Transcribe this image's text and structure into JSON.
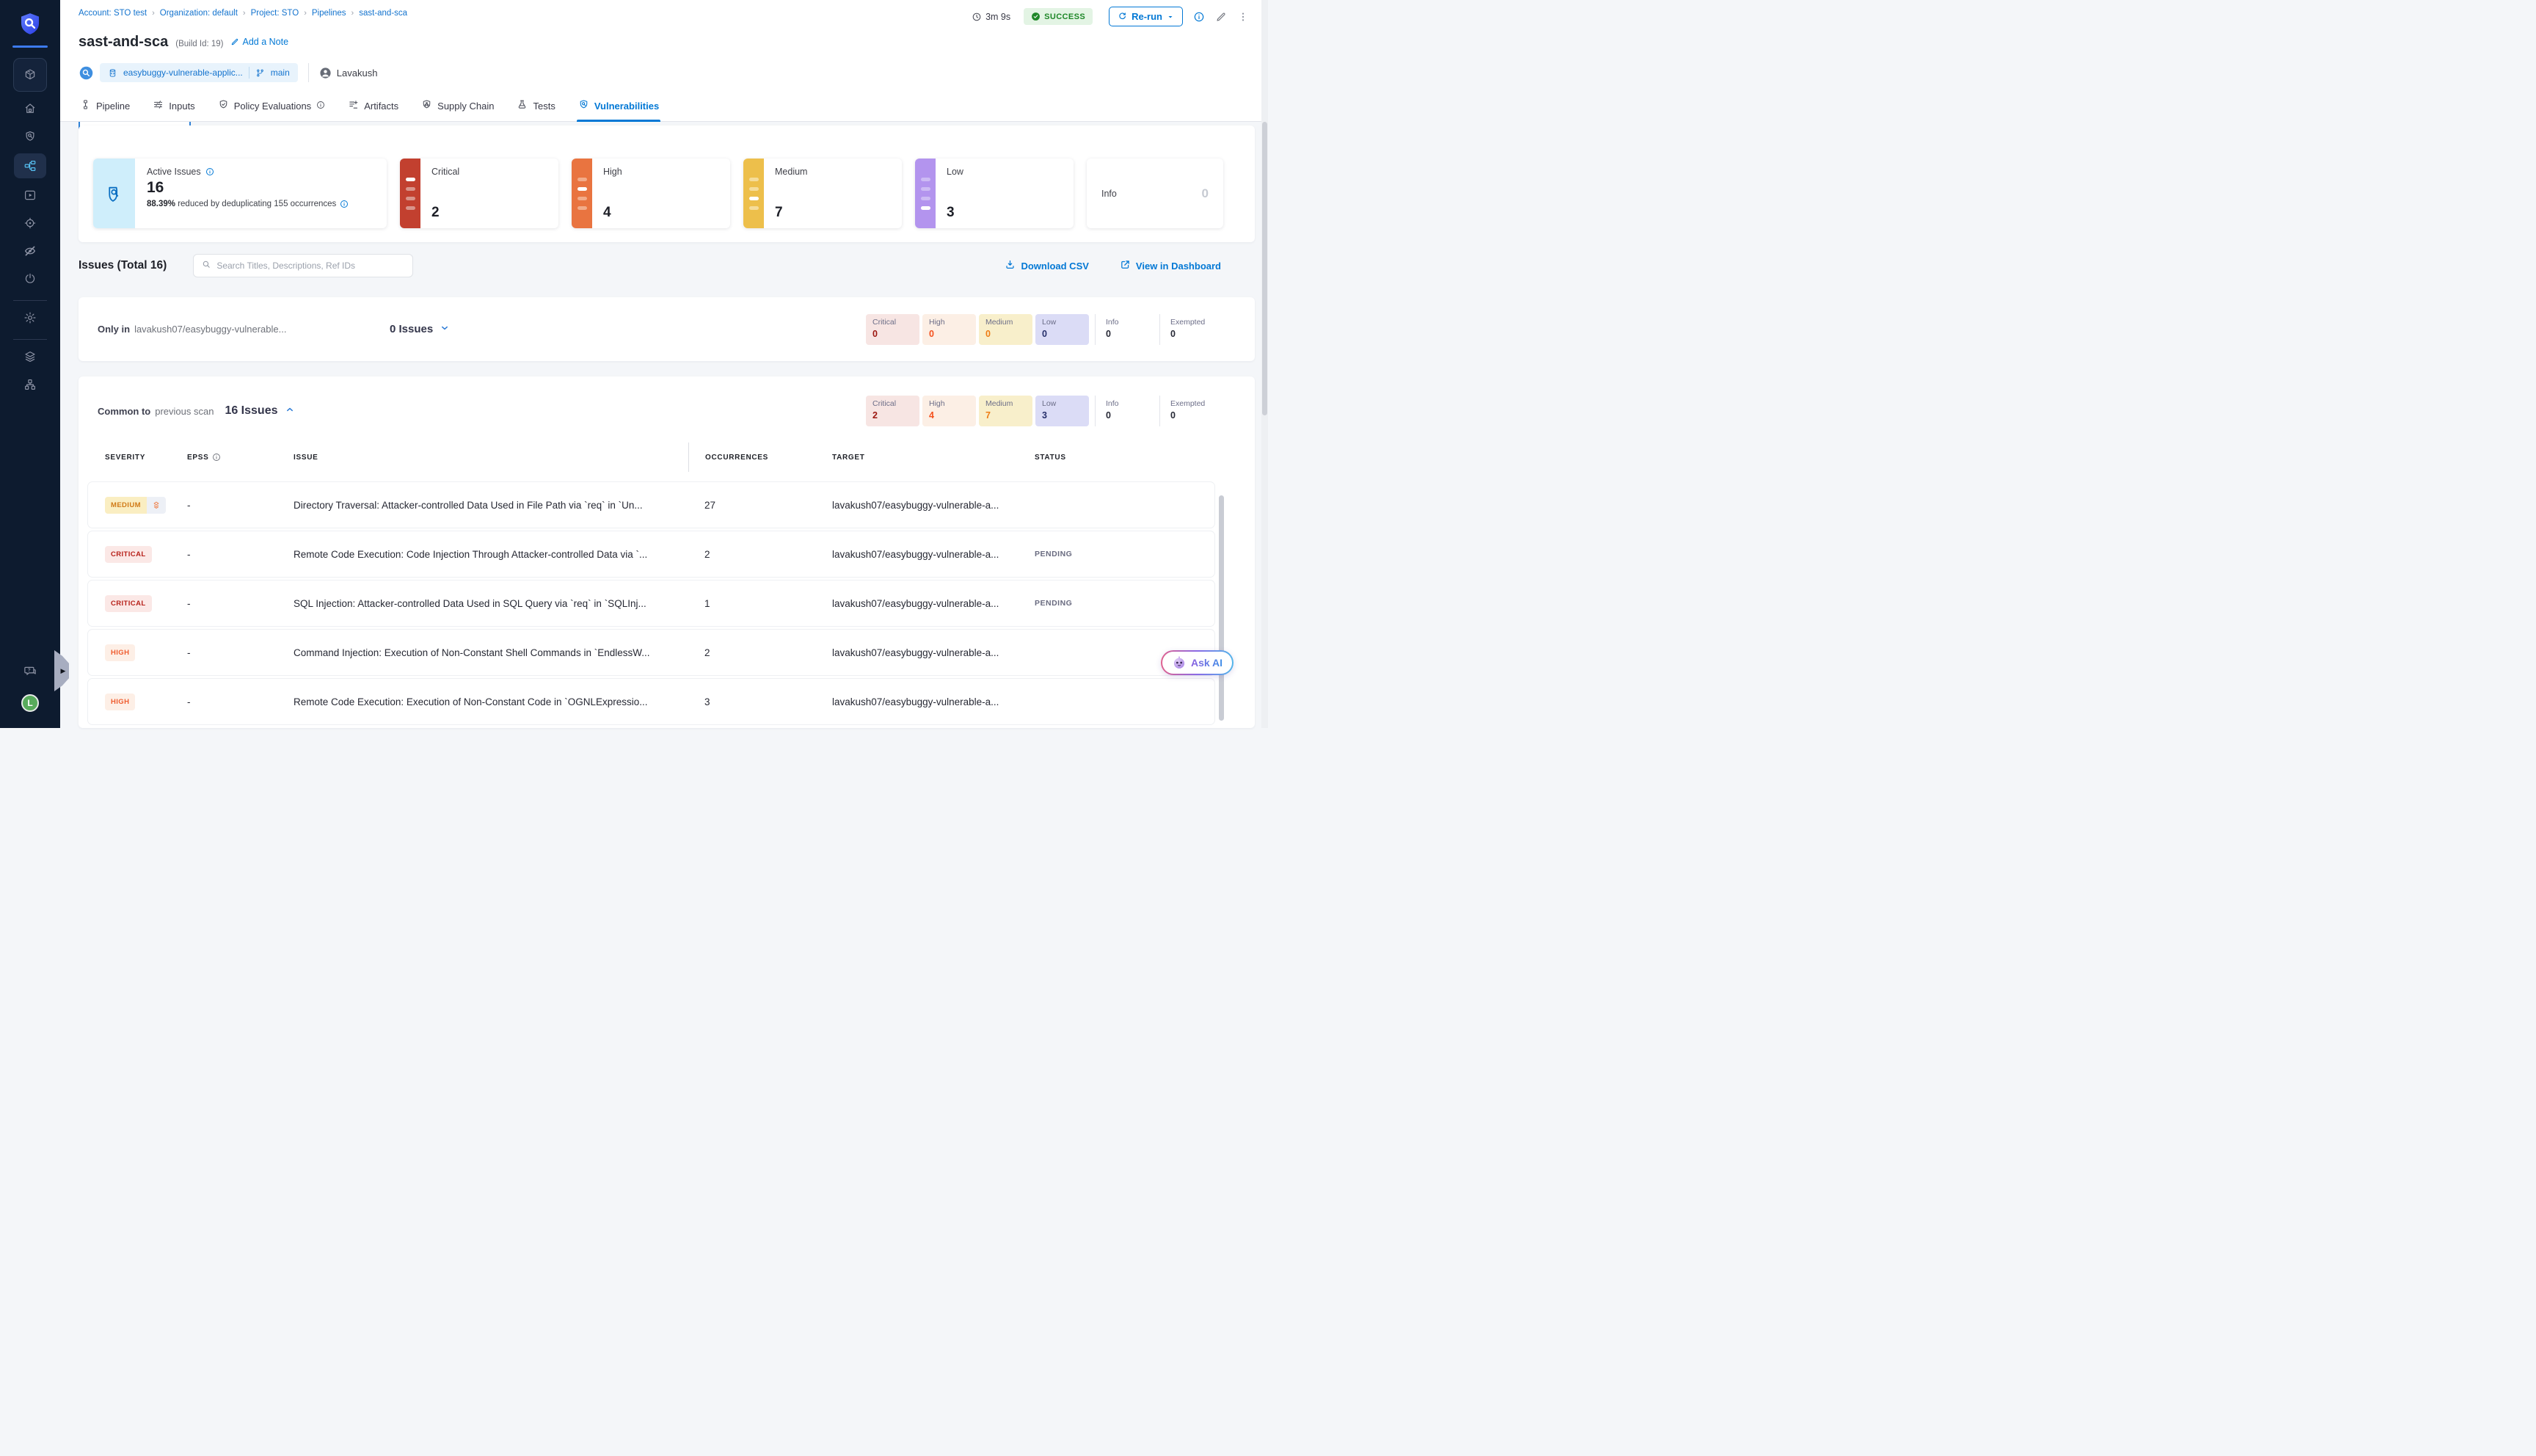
{
  "palette": {
    "accent": "#0278d5",
    "success": "#1e8728",
    "success_bg": "#e3f4e4",
    "critical": "#c2402f",
    "critical_bar": "#d9948a",
    "critical_text": "#9c1710",
    "critical_chip": "#f7e5e3",
    "high": "#e97440",
    "high_bar": "#f2ab89",
    "high_text": "#f4511e",
    "high_chip": "#fcefe5",
    "medium": "#edbf4b",
    "medium_bar": "#f5dc9a",
    "medium_text": "#ee7d15",
    "medium_chip": "#f8efcb",
    "low": "#b394ee",
    "low_bar": "#cdbbf4",
    "low_text": "#27306b",
    "low_chip": "#dbdcf6",
    "badge_critical_bg": "#fbe8e6",
    "badge_critical_fg": "#b7211a",
    "badge_high_bg": "#fdefe6",
    "badge_high_fg": "#ef5c2e",
    "badge_medium_bg": "#faeec2",
    "badge_medium_fg": "#d07a17"
  },
  "sidebar": {
    "avatar_initial": "L"
  },
  "header": {
    "breadcrumbs": [
      "Account: STO test",
      "Organization: default",
      "Project: STO",
      "Pipelines",
      "sast-and-sca"
    ],
    "duration": "3m 9s",
    "status": "SUCCESS",
    "rerun_label": "Re-run",
    "title": "sast-and-sca",
    "build_id": "(Build Id: 19)",
    "add_note_label": "Add a Note",
    "repo": "easybuggy-vulnerable-applic...",
    "branch": "main",
    "user": "Lavakush"
  },
  "tabs": [
    {
      "label": "Pipeline",
      "icon": "pipeline",
      "active": false
    },
    {
      "label": "Inputs",
      "icon": "inputs",
      "active": false
    },
    {
      "label": "Policy Evaluations",
      "icon": "policy",
      "active": false,
      "info": true
    },
    {
      "label": "Artifacts",
      "icon": "artifacts",
      "active": false
    },
    {
      "label": "Supply Chain",
      "icon": "supply-chain",
      "active": false
    },
    {
      "label": "Tests",
      "icon": "tests",
      "active": false
    },
    {
      "label": "Vulnerabilities",
      "icon": "vulnerabilities",
      "active": true
    }
  ],
  "summary": {
    "active_issues": {
      "label": "Active Issues",
      "value": "16",
      "dedup_bold": "88.39%",
      "dedup_rest": " reduced by deduplicating 155 occurrences"
    },
    "severity_cards": [
      {
        "label": "Critical",
        "value": "2",
        "type": "critical",
        "highlight_bar": 0
      },
      {
        "label": "High",
        "value": "4",
        "type": "high",
        "highlight_bar": 1
      },
      {
        "label": "Medium",
        "value": "7",
        "type": "medium",
        "highlight_bar": 2
      },
      {
        "label": "Low",
        "value": "3",
        "type": "low",
        "highlight_bar": 3
      }
    ],
    "info_card": {
      "label": "Info",
      "value": "0"
    }
  },
  "toolbar": {
    "issues_title": "Issues (Total 16)",
    "search_placeholder": "Search Titles, Descriptions, Ref IDs",
    "download_csv": "Download CSV",
    "view_in_dashboard": "View in Dashboard"
  },
  "sections": [
    {
      "prefix": "Only in",
      "name": "lavakush07/easybuggy-vulnerable...",
      "count": "0 Issues",
      "state": "collapsed",
      "chips": [
        {
          "label": "Critical",
          "value": "0",
          "type": "critical"
        },
        {
          "label": "High",
          "value": "0",
          "type": "high"
        },
        {
          "label": "Medium",
          "value": "0",
          "type": "medium"
        },
        {
          "label": "Low",
          "value": "0",
          "type": "low"
        },
        {
          "label": "Info",
          "value": "0",
          "type": "info"
        },
        {
          "label": "Exempted",
          "value": "0",
          "type": "exempted"
        }
      ]
    },
    {
      "prefix": "Common to",
      "name": "previous scan",
      "count": "16 Issues",
      "state": "expanded",
      "chips": [
        {
          "label": "Critical",
          "value": "2",
          "type": "critical"
        },
        {
          "label": "High",
          "value": "4",
          "type": "high"
        },
        {
          "label": "Medium",
          "value": "7",
          "type": "medium"
        },
        {
          "label": "Low",
          "value": "3",
          "type": "low"
        },
        {
          "label": "Info",
          "value": "0",
          "type": "info"
        },
        {
          "label": "Exempted",
          "value": "0",
          "type": "exempted"
        }
      ]
    }
  ],
  "table": {
    "columns": [
      {
        "label": "SEVERITY"
      },
      {
        "label": "EPSS",
        "info": true
      },
      {
        "label": "ISSUE"
      },
      {
        "label": "OCCURRENCES"
      },
      {
        "label": "TARGET"
      },
      {
        "label": "STATUS"
      }
    ],
    "rows": [
      {
        "severity": "MEDIUM",
        "severity_type": "medium",
        "dedup_icon": true,
        "epss": "-",
        "issue": "Directory Traversal: Attacker-controlled Data Used in File Path via `req` in `Un...",
        "occurrences": "27",
        "target": "lavakush07/easybuggy-vulnerable-a...",
        "status": ""
      },
      {
        "severity": "CRITICAL",
        "severity_type": "critical",
        "dedup_icon": false,
        "epss": "-",
        "issue": "Remote Code Execution: Code Injection Through Attacker-controlled Data via `...",
        "occurrences": "2",
        "target": "lavakush07/easybuggy-vulnerable-a...",
        "status": "PENDING"
      },
      {
        "severity": "CRITICAL",
        "severity_type": "critical",
        "dedup_icon": false,
        "epss": "-",
        "issue": "SQL Injection: Attacker-controlled Data Used in SQL Query via `req` in `SQLInj...",
        "occurrences": "1",
        "target": "lavakush07/easybuggy-vulnerable-a...",
        "status": "PENDING"
      },
      {
        "severity": "HIGH",
        "severity_type": "high",
        "dedup_icon": false,
        "epss": "-",
        "issue": "Command Injection: Execution of Non-Constant Shell Commands in `EndlessW...",
        "occurrences": "2",
        "target": "lavakush07/easybuggy-vulnerable-a...",
        "status": ""
      },
      {
        "severity": "HIGH",
        "severity_type": "high",
        "dedup_icon": false,
        "epss": "-",
        "issue": "Remote Code Execution: Execution of Non-Constant Code in `OGNLExpressio...",
        "occurrences": "3",
        "target": "lavakush07/easybuggy-vulnerable-a...",
        "status": ""
      }
    ]
  },
  "ask_ai": {
    "label": "Ask AI"
  }
}
